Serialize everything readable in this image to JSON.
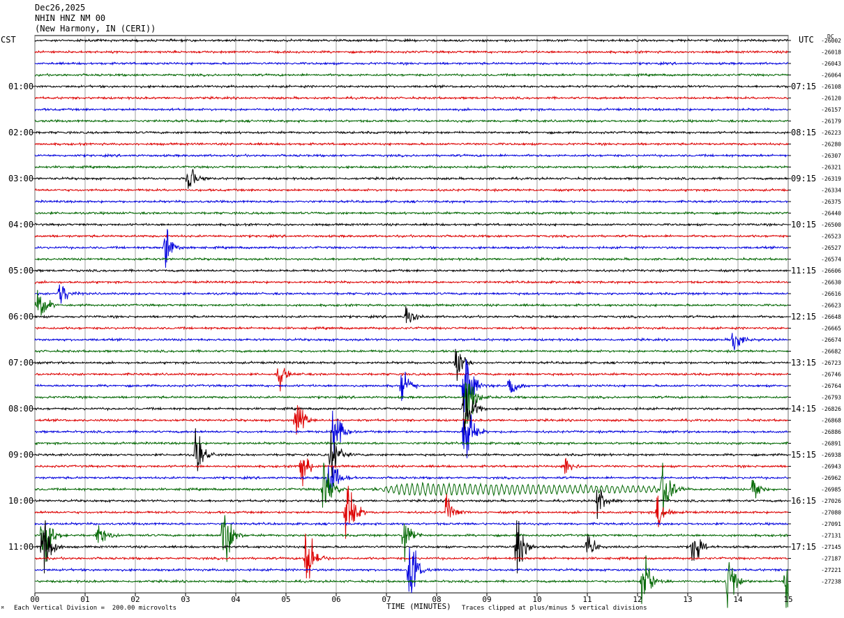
{
  "header": {
    "date": "Dec26,2025",
    "station": "NHIN HNZ NM 00",
    "location": "(New Harmony, IN (CERI))"
  },
  "left_zone_label": "CST",
  "right_zone_label": "UTC",
  "dc_label": "DC",
  "footer": {
    "scale_note": "Each Vertical Division =  200.00 microvolts",
    "clip_note": "Traces clipped at plus/minus 5 vertical divisions",
    "corner_mark": "ᴹ"
  },
  "chart_data": {
    "type": "line",
    "title": "",
    "xlabel": "TIME (MINUTES)",
    "ylabel": "",
    "xlim": [
      0,
      15
    ],
    "x_ticks": [
      "00",
      "01",
      "02",
      "03",
      "04",
      "05",
      "06",
      "07",
      "08",
      "09",
      "10",
      "11",
      "12",
      "13",
      "14",
      "15"
    ],
    "trace_colors": [
      "#000000",
      "#dd0000",
      "#0000dd",
      "#006600"
    ],
    "left_hour_labels": [
      "01:00",
      "02:00",
      "03:00",
      "04:00",
      "05:00",
      "06:00",
      "07:00",
      "08:00",
      "09:00",
      "10:00",
      "11:00"
    ],
    "right_hour_labels": [
      "07:15",
      "08:15",
      "09:15",
      "10:15",
      "11:15",
      "12:15",
      "13:15",
      "14:15",
      "15:15",
      "16:15",
      "17:15"
    ],
    "dc_offsets": [
      "-26002",
      "-26018",
      "-26043",
      "-26064",
      "-26108",
      "-26120",
      "-26157",
      "-26179",
      "-26223",
      "-26280",
      "-26307",
      "-26321",
      "-26319",
      "-26334",
      "-26375",
      "-26440",
      "-26500",
      "-26523",
      "-26527",
      "-26574",
      "-26606",
      "-26630",
      "-26616",
      "-26623",
      "-26648",
      "-26665",
      "-26674",
      "-26682",
      "-26723",
      "-26746",
      "-26764",
      "-26793",
      "-26826",
      "-26868",
      "-26886",
      "-26891",
      "-26938",
      "-26943",
      "-26962",
      "-26985",
      "-27026",
      "-27080",
      "-27091",
      "-27131",
      "-27145",
      "-27187",
      "-27221",
      "-27238"
    ],
    "events": [
      {
        "trace": 12,
        "minute": 3.05,
        "amp": 0.5
      },
      {
        "trace": 18,
        "minute": 2.6,
        "amp": 0.5
      },
      {
        "trace": 22,
        "minute": 0.5,
        "amp": 0.35
      },
      {
        "trace": 23,
        "minute": 0.05,
        "amp": 0.6
      },
      {
        "trace": 24,
        "minute": 7.4,
        "amp": 0.3
      },
      {
        "trace": 26,
        "minute": 13.9,
        "amp": 0.4
      },
      {
        "trace": 28,
        "minute": 8.4,
        "amp": 0.5
      },
      {
        "trace": 29,
        "minute": 4.85,
        "amp": 0.35
      },
      {
        "trace": 30,
        "minute": 8.55,
        "amp": 1.0
      },
      {
        "trace": 30,
        "minute": 7.3,
        "amp": 0.45
      },
      {
        "trace": 30,
        "minute": 9.45,
        "amp": 0.4
      },
      {
        "trace": 31,
        "minute": 8.6,
        "amp": 0.8
      },
      {
        "trace": 32,
        "minute": 8.55,
        "amp": 0.9
      },
      {
        "trace": 33,
        "minute": 5.2,
        "amp": 0.55
      },
      {
        "trace": 34,
        "minute": 5.95,
        "amp": 0.7
      },
      {
        "trace": 34,
        "minute": 8.55,
        "amp": 0.9
      },
      {
        "trace": 36,
        "minute": 3.2,
        "amp": 0.65
      },
      {
        "trace": 36,
        "minute": 5.9,
        "amp": 0.6
      },
      {
        "trace": 37,
        "minute": 5.3,
        "amp": 0.5
      },
      {
        "trace": 37,
        "minute": 10.55,
        "amp": 0.3
      },
      {
        "trace": 38,
        "minute": 5.85,
        "amp": 0.7
      },
      {
        "trace": 39,
        "minute": 5.75,
        "amp": 0.9
      },
      {
        "trace": 39,
        "minute": 12.5,
        "amp": 0.9
      },
      {
        "trace": 39,
        "minute": 14.3,
        "amp": 0.4
      },
      {
        "trace": 40,
        "minute": 11.2,
        "amp": 0.45
      },
      {
        "trace": 41,
        "minute": 6.2,
        "amp": 0.9
      },
      {
        "trace": 41,
        "minute": 12.4,
        "amp": 0.45
      },
      {
        "trace": 41,
        "minute": 8.2,
        "amp": 0.4
      },
      {
        "trace": 43,
        "minute": 0.15,
        "amp": 0.9
      },
      {
        "trace": 43,
        "minute": 3.75,
        "amp": 1.0
      },
      {
        "trace": 43,
        "minute": 7.35,
        "amp": 0.6
      },
      {
        "trace": 43,
        "minute": 1.25,
        "amp": 0.35
      },
      {
        "trace": 44,
        "minute": 0.15,
        "amp": 0.9
      },
      {
        "trace": 44,
        "minute": 9.6,
        "amp": 0.8
      },
      {
        "trace": 44,
        "minute": 11.0,
        "amp": 0.4
      },
      {
        "trace": 44,
        "minute": 13.1,
        "amp": 0.45
      },
      {
        "trace": 45,
        "minute": 5.4,
        "amp": 0.9
      },
      {
        "trace": 46,
        "minute": 7.45,
        "amp": 0.9
      },
      {
        "trace": 47,
        "minute": 12.1,
        "amp": 0.9
      },
      {
        "trace": 47,
        "minute": 13.8,
        "amp": 0.7
      },
      {
        "trace": 47,
        "minute": 14.95,
        "amp": 0.9
      }
    ],
    "long_wave": {
      "trace": 39,
      "start_minute": 6.7,
      "end_minute": 12.4
    }
  }
}
